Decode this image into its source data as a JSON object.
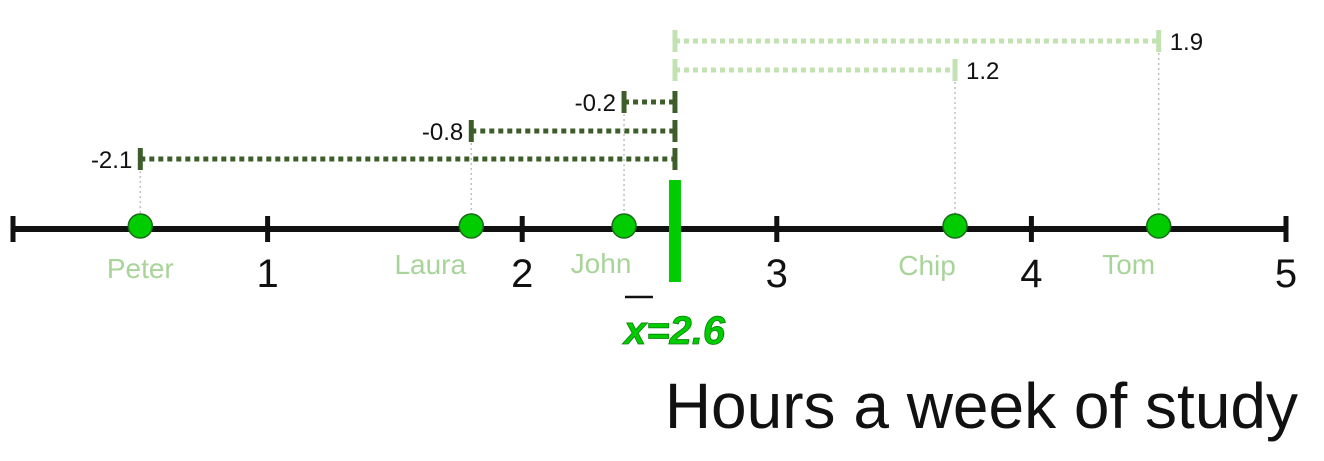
{
  "axis": {
    "min": 0,
    "max": 5,
    "tick_labels": [
      "1",
      "2",
      "3",
      "4",
      "5"
    ],
    "title": "Hours a week of study"
  },
  "mean": {
    "value": 2.6,
    "label": "x=2.6"
  },
  "points": [
    {
      "name": "Peter",
      "value": 0.5,
      "deviation": "-2.1"
    },
    {
      "name": "Laura",
      "value": 1.8,
      "deviation": "-0.8"
    },
    {
      "name": "John",
      "value": 2.4,
      "deviation": "-0.2"
    },
    {
      "name": "Chip",
      "value": 3.7,
      "deviation": "1.2"
    },
    {
      "name": "Tom",
      "value": 4.5,
      "deviation": "1.9"
    }
  ],
  "colors": {
    "axis": "#111111",
    "point": "#00cc00",
    "mean": "#00cc00",
    "name_label": "#a8d49a",
    "negative_deviation": "#3d5e2a",
    "positive_deviation": "#c2e2b2",
    "guide": "#c0c0c0"
  }
}
